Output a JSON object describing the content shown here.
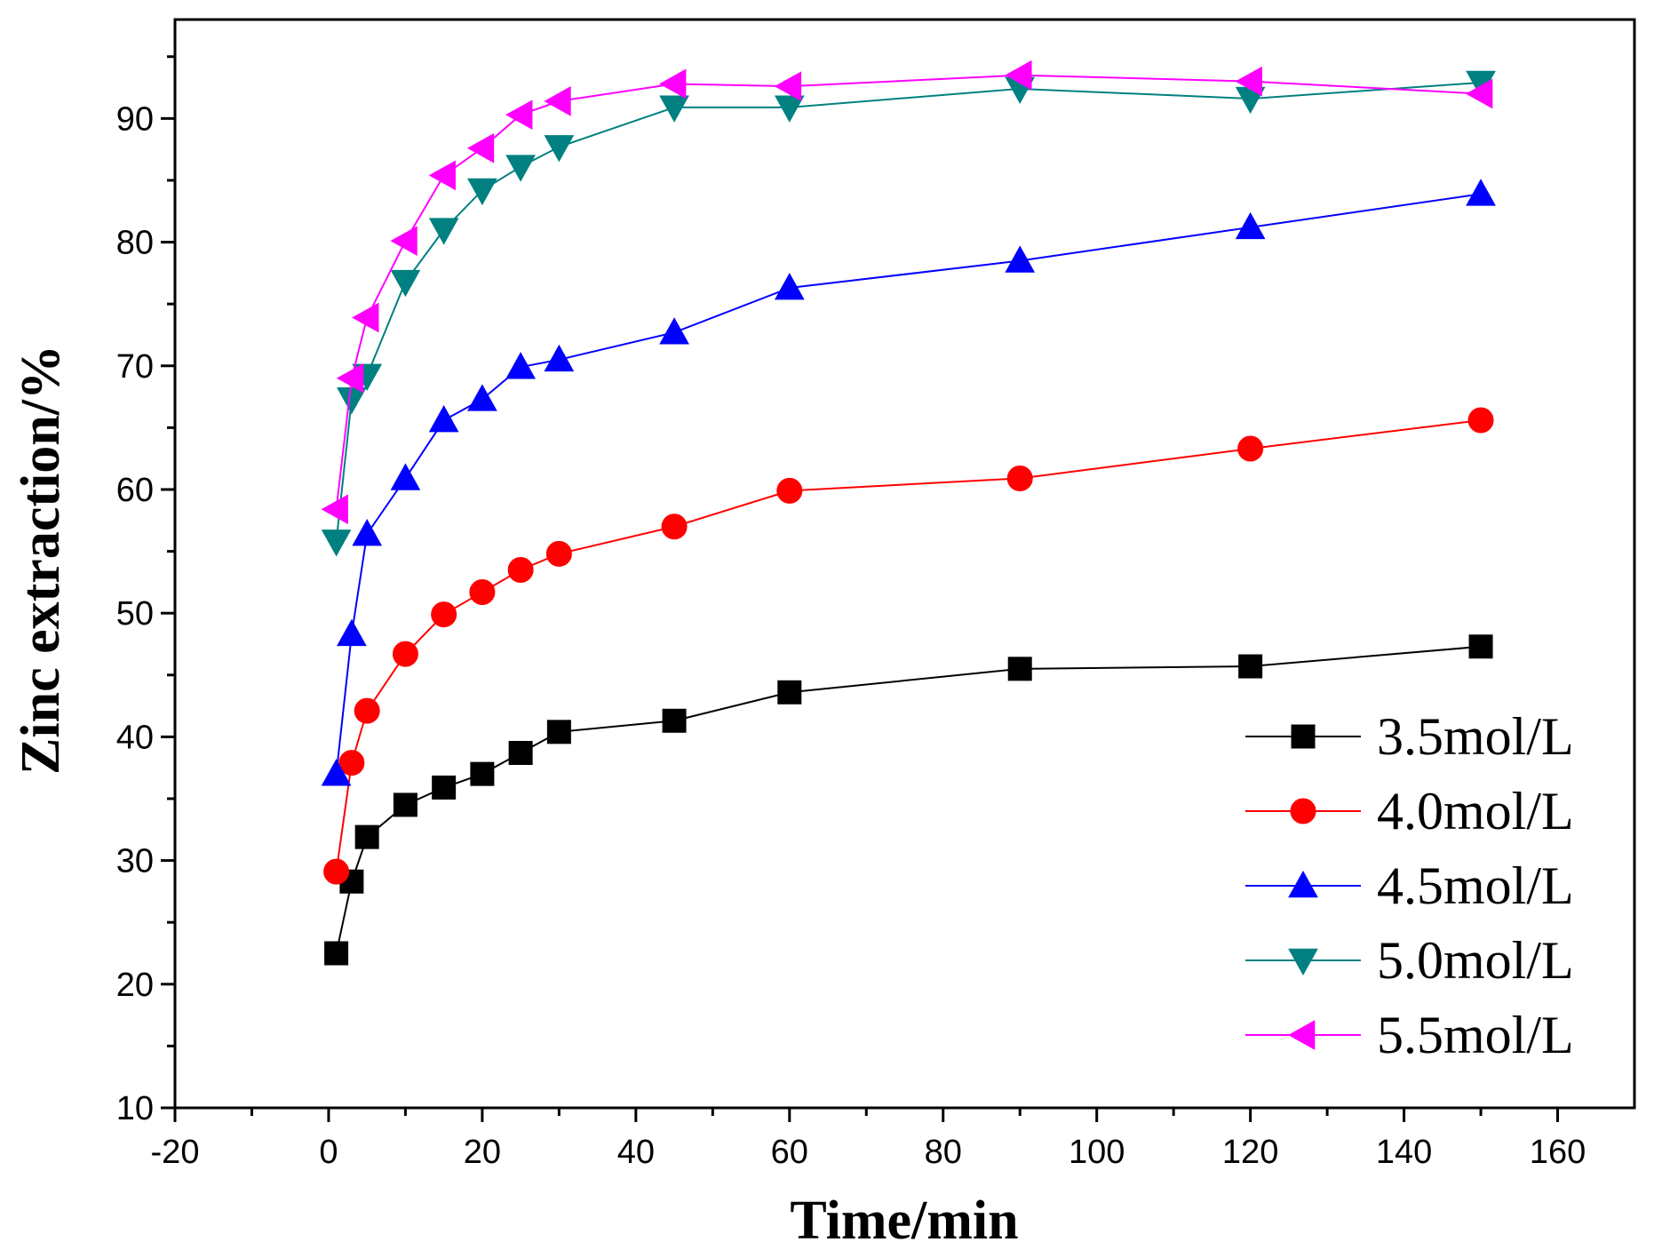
{
  "chart_data": {
    "type": "line",
    "title": "",
    "xlabel": "Time/min",
    "ylabel": "Zinc extraction/%",
    "xlim": [
      -20,
      170
    ],
    "ylim": [
      10,
      98
    ],
    "xticks": [
      -20,
      0,
      20,
      40,
      60,
      80,
      100,
      120,
      140,
      160
    ],
    "yticks": [
      10,
      20,
      30,
      40,
      50,
      60,
      70,
      80,
      90
    ],
    "x": [
      1,
      3,
      5,
      10,
      15,
      20,
      25,
      30,
      45,
      60,
      90,
      120,
      150
    ],
    "legend_position": "bottom-right",
    "grid": false,
    "series": [
      {
        "name": "3.5mol/L",
        "color": "#000000",
        "marker": "square",
        "values": [
          22.5,
          28.3,
          31.9,
          34.5,
          35.9,
          37.0,
          38.7,
          40.4,
          41.3,
          43.6,
          45.5,
          45.7,
          47.3
        ]
      },
      {
        "name": "4.0mol/L",
        "color": "#ff0000",
        "marker": "circle",
        "values": [
          29.1,
          37.9,
          42.1,
          46.7,
          49.9,
          51.7,
          53.5,
          54.8,
          57.0,
          59.9,
          60.9,
          63.3,
          65.6
        ]
      },
      {
        "name": "4.5mol/L",
        "color": "#0000ff",
        "marker": "triangle-up",
        "values": [
          37.0,
          48.3,
          56.4,
          60.9,
          65.6,
          67.3,
          69.9,
          70.5,
          72.7,
          76.3,
          78.5,
          81.2,
          83.9
        ]
      },
      {
        "name": "5.0mol/L",
        "color": "#008080",
        "marker": "triangle-down",
        "values": [
          55.8,
          67.3,
          69.2,
          76.8,
          81.0,
          84.2,
          86.1,
          87.7,
          90.9,
          90.9,
          92.4,
          91.6,
          92.9
        ]
      },
      {
        "name": "5.5mol/L",
        "color": "#ff00ff",
        "marker": "triangle-left",
        "values": [
          58.4,
          69.0,
          73.9,
          80.1,
          85.4,
          87.6,
          90.3,
          91.4,
          92.8,
          92.6,
          93.5,
          93.0,
          92.0
        ]
      }
    ]
  }
}
